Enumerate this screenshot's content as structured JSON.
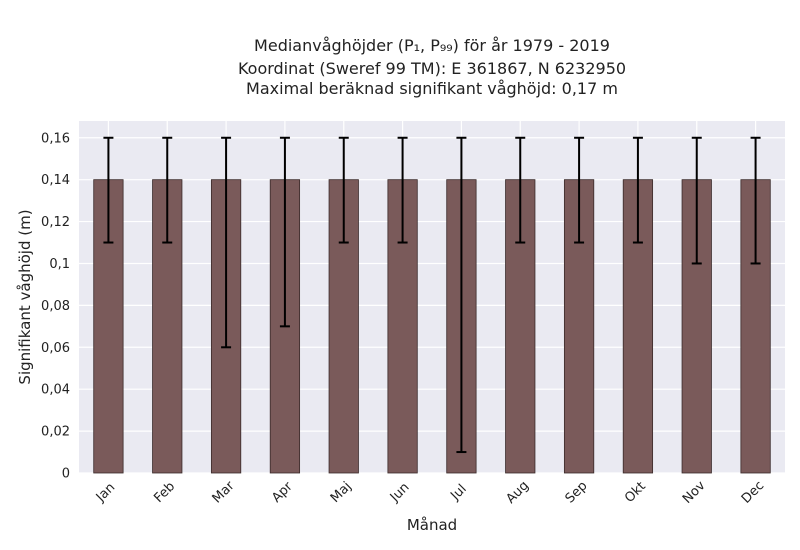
{
  "chart_data": {
    "type": "bar",
    "title_lines": [
      "Medianvåghöjder (P₁, P₉₉) för år 1979 - 2019",
      "Koordinat (Sweref 99 TM): E 361867, N 6232950",
      "Maximal beräknad signifikant våghöjd: 0,17 m"
    ],
    "xlabel": "Månad",
    "ylabel": "Signifikant våghöjd (m)",
    "categories": [
      "Jan",
      "Feb",
      "Mar",
      "Apr",
      "Maj",
      "Jun",
      "Jul",
      "Aug",
      "Sep",
      "Okt",
      "Nov",
      "Dec"
    ],
    "values": [
      0.14,
      0.14,
      0.14,
      0.14,
      0.14,
      0.14,
      0.14,
      0.14,
      0.14,
      0.14,
      0.14,
      0.14
    ],
    "p1": [
      0.11,
      0.11,
      0.06,
      0.07,
      0.11,
      0.11,
      0.01,
      0.11,
      0.11,
      0.11,
      0.1,
      0.1
    ],
    "p99": [
      0.16,
      0.16,
      0.16,
      0.16,
      0.16,
      0.16,
      0.16,
      0.16,
      0.16,
      0.16,
      0.16,
      0.16
    ],
    "ylim": [
      0,
      0.168
    ],
    "yticks": [
      0,
      0.02,
      0.04,
      0.06,
      0.08,
      0.1,
      0.12,
      0.14,
      0.16
    ],
    "ytick_labels": [
      "0",
      "0,02",
      "0,04",
      "0,06",
      "0,08",
      "0,1",
      "0,12",
      "0,14",
      "0,16"
    ],
    "grid": true,
    "colors": {
      "bar": "#7a5a5a",
      "plot_bg": "#eaeaf2",
      "errorbar": "#000000"
    }
  }
}
